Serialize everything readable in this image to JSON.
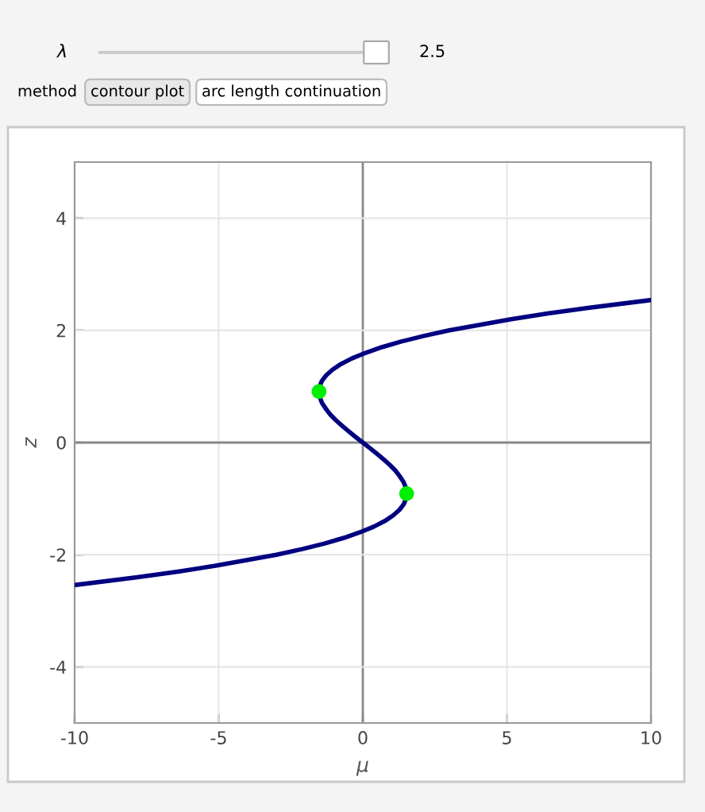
{
  "chart_data": {
    "type": "line",
    "xlabel": "μ",
    "ylabel": "z",
    "annotations": [
      "λ",
      "2.5",
      "method",
      "contour plot",
      "arc length continuation"
    ],
    "series": [
      {
        "color": "#000080",
        "x": [
          -9.99,
          -7.82,
          -6.42,
          -5.15,
          -3.0,
          -2.11,
          -1.33,
          -0.66,
          -0.1,
          0.38,
          0.76,
          1.05,
          1.27,
          1.42,
          1.5,
          1.52,
          1.49,
          1.41,
          1.28,
          1.13,
          0.94,
          0.72,
          0.49,
          0.25,
          0.0,
          -0.25,
          -0.49,
          -0.72,
          -0.94,
          -1.13,
          -1.28,
          -1.41,
          -1.49,
          -1.52,
          -1.5,
          -1.42,
          -1.27,
          -1.05,
          -0.76,
          -0.38,
          0.1,
          0.66,
          1.33,
          2.11,
          3.0,
          5.15,
          6.42,
          7.82,
          9.99
        ],
        "values": [
          -2.54,
          -2.4,
          -2.3,
          -2.2,
          -2.0,
          -1.9,
          -1.8,
          -1.7,
          -1.6,
          -1.5,
          -1.4,
          -1.3,
          -1.2,
          -1.1,
          -1.0,
          -0.91,
          -0.8,
          -0.7,
          -0.6,
          -0.5,
          -0.4,
          -0.3,
          -0.2,
          -0.1,
          0.0,
          0.1,
          0.2,
          0.3,
          0.4,
          0.5,
          0.6,
          0.7,
          0.8,
          0.91,
          1.0,
          1.1,
          1.2,
          1.3,
          1.4,
          1.5,
          1.6,
          1.7,
          1.8,
          1.9,
          2.0,
          2.2,
          2.3,
          2.4,
          2.54
        ]
      },
      {
        "type": "scatter",
        "color": "#00ee00",
        "x": [
          -1.52,
          1.52
        ],
        "values": [
          0.91,
          -0.91
        ]
      }
    ],
    "xlim": [
      -10,
      10
    ],
    "xticks": [
      -10,
      -5,
      0,
      5,
      10
    ],
    "ylim": [
      -5,
      5
    ],
    "yticks": [
      -4,
      -2,
      0,
      2,
      4
    ],
    "grid": true
  }
}
